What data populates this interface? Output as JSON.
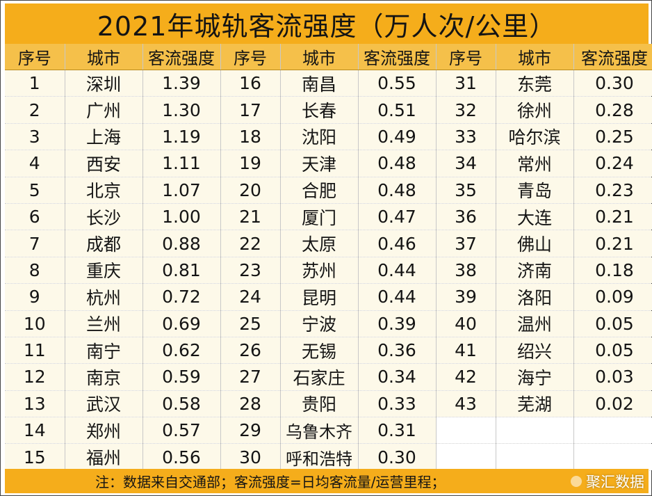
{
  "title": "2021年城轨客流强度（万人次/公里）",
  "headers": {
    "seq": "序号",
    "city": "城市",
    "intensity": "客流强度"
  },
  "rows": [
    [
      {
        "no": "1",
        "city": "深圳",
        "value": "1.39"
      },
      {
        "no": "16",
        "city": "南昌",
        "value": "0.55"
      },
      {
        "no": "31",
        "city": "东莞",
        "value": "0.30"
      }
    ],
    [
      {
        "no": "2",
        "city": "广州",
        "value": "1.30"
      },
      {
        "no": "17",
        "city": "长春",
        "value": "0.51"
      },
      {
        "no": "32",
        "city": "徐州",
        "value": "0.28"
      }
    ],
    [
      {
        "no": "3",
        "city": "上海",
        "value": "1.19"
      },
      {
        "no": "18",
        "city": "沈阳",
        "value": "0.49"
      },
      {
        "no": "33",
        "city": "哈尔滨",
        "value": "0.25"
      }
    ],
    [
      {
        "no": "4",
        "city": "西安",
        "value": "1.11"
      },
      {
        "no": "19",
        "city": "天津",
        "value": "0.48"
      },
      {
        "no": "34",
        "city": "常州",
        "value": "0.24"
      }
    ],
    [
      {
        "no": "5",
        "city": "北京",
        "value": "1.07"
      },
      {
        "no": "20",
        "city": "合肥",
        "value": "0.48"
      },
      {
        "no": "35",
        "city": "青岛",
        "value": "0.23"
      }
    ],
    [
      {
        "no": "6",
        "city": "长沙",
        "value": "1.00"
      },
      {
        "no": "21",
        "city": "厦门",
        "value": "0.47"
      },
      {
        "no": "36",
        "city": "大连",
        "value": "0.21"
      }
    ],
    [
      {
        "no": "7",
        "city": "成都",
        "value": "0.88"
      },
      {
        "no": "22",
        "city": "太原",
        "value": "0.46"
      },
      {
        "no": "37",
        "city": "佛山",
        "value": "0.21"
      }
    ],
    [
      {
        "no": "8",
        "city": "重庆",
        "value": "0.81"
      },
      {
        "no": "23",
        "city": "苏州",
        "value": "0.44"
      },
      {
        "no": "38",
        "city": "济南",
        "value": "0.18"
      }
    ],
    [
      {
        "no": "9",
        "city": "杭州",
        "value": "0.72"
      },
      {
        "no": "24",
        "city": "昆明",
        "value": "0.44"
      },
      {
        "no": "39",
        "city": "洛阳",
        "value": "0.09"
      }
    ],
    [
      {
        "no": "10",
        "city": "兰州",
        "value": "0.69"
      },
      {
        "no": "25",
        "city": "宁波",
        "value": "0.39"
      },
      {
        "no": "40",
        "city": "温州",
        "value": "0.05"
      }
    ],
    [
      {
        "no": "11",
        "city": "南宁",
        "value": "0.62"
      },
      {
        "no": "26",
        "city": "无锡",
        "value": "0.36"
      },
      {
        "no": "41",
        "city": "绍兴",
        "value": "0.05"
      }
    ],
    [
      {
        "no": "12",
        "city": "南京",
        "value": "0.59"
      },
      {
        "no": "27",
        "city": "石家庄",
        "value": "0.34"
      },
      {
        "no": "42",
        "city": "海宁",
        "value": "0.03"
      }
    ],
    [
      {
        "no": "13",
        "city": "武汉",
        "value": "0.58"
      },
      {
        "no": "28",
        "city": "贵阳",
        "value": "0.33"
      },
      {
        "no": "43",
        "city": "芜湖",
        "value": "0.02"
      }
    ],
    [
      {
        "no": "14",
        "city": "郑州",
        "value": "0.57"
      },
      {
        "no": "29",
        "city": "乌鲁木齐",
        "value": "0.31"
      },
      null
    ],
    [
      {
        "no": "15",
        "city": "福州",
        "value": "0.56"
      },
      {
        "no": "30",
        "city": "呼和浩特",
        "value": "0.30"
      },
      null
    ]
  ],
  "footer": {
    "note": "注：数据来自交通部；客流强度=日均客流量/运营里程；",
    "watermark": "聚汇数据"
  },
  "colors": {
    "title_bg": "#f5ad1b",
    "header_bg": "#f5c04a",
    "row_bg": "#fdf9e9"
  }
}
